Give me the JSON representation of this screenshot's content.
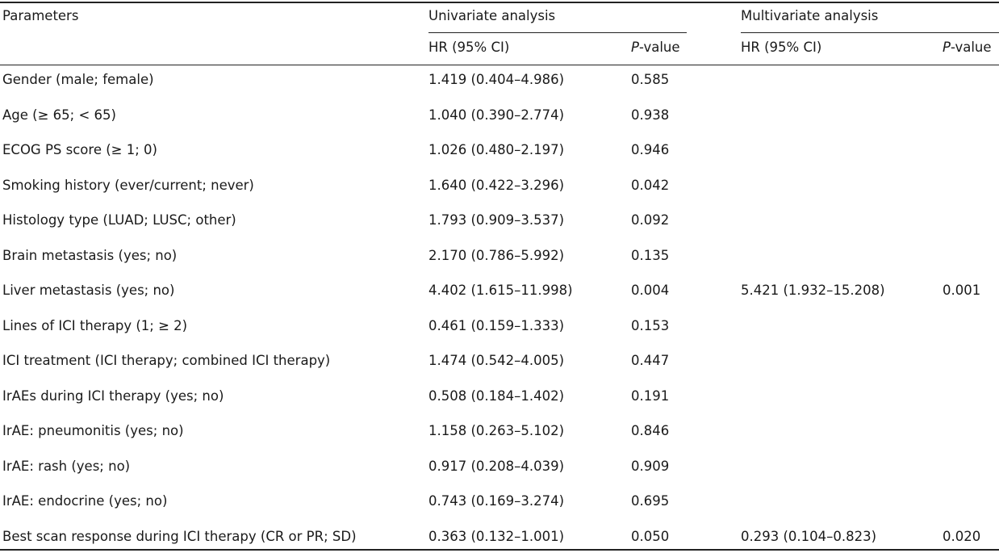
{
  "table": {
    "header": {
      "parameters": "Parameters",
      "univariate": "Univariate analysis",
      "multivariate": "Multivariate analysis",
      "hr_label": "HR (95% CI)",
      "p_italic": "P",
      "p_suffix": "-value"
    },
    "rows": [
      {
        "parameter": "Gender (male; female)",
        "uni_hr": "1.419 (0.404–4.986)",
        "uni_p": "0.585",
        "multi_hr": "",
        "multi_p": ""
      },
      {
        "parameter": "Age (≥ 65; < 65)",
        "uni_hr": "1.040 (0.390–2.774)",
        "uni_p": "0.938",
        "multi_hr": "",
        "multi_p": ""
      },
      {
        "parameter": "ECOG PS score (≥ 1; 0)",
        "uni_hr": "1.026 (0.480–2.197)",
        "uni_p": "0.946",
        "multi_hr": "",
        "multi_p": ""
      },
      {
        "parameter": "Smoking history (ever/current; never)",
        "uni_hr": "1.640 (0.422–3.296)",
        "uni_p": "0.042",
        "multi_hr": "",
        "multi_p": ""
      },
      {
        "parameter": "Histology type (LUAD; LUSC; other)",
        "uni_hr": "1.793 (0.909–3.537)",
        "uni_p": "0.092",
        "multi_hr": "",
        "multi_p": ""
      },
      {
        "parameter": "Brain metastasis (yes; no)",
        "uni_hr": "2.170 (0.786–5.992)",
        "uni_p": "0.135",
        "multi_hr": "",
        "multi_p": ""
      },
      {
        "parameter": "Liver metastasis (yes; no)",
        "uni_hr": "4.402 (1.615–11.998)",
        "uni_p": "0.004",
        "multi_hr": "5.421 (1.932–15.208)",
        "multi_p": "0.001"
      },
      {
        "parameter": "Lines of ICI therapy (1; ≥ 2)",
        "uni_hr": "0.461 (0.159–1.333)",
        "uni_p": "0.153",
        "multi_hr": "",
        "multi_p": ""
      },
      {
        "parameter": "ICI treatment (ICI therapy; combined ICI therapy)",
        "uni_hr": "1.474 (0.542–4.005)",
        "uni_p": "0.447",
        "multi_hr": "",
        "multi_p": ""
      },
      {
        "parameter": "IrAEs during ICI therapy (yes; no)",
        "uni_hr": "0.508 (0.184–1.402)",
        "uni_p": "0.191",
        "multi_hr": "",
        "multi_p": ""
      },
      {
        "parameter": "IrAE: pneumonitis (yes; no)",
        "uni_hr": "1.158 (0.263–5.102)",
        "uni_p": "0.846",
        "multi_hr": "",
        "multi_p": ""
      },
      {
        "parameter": "IrAE: rash (yes; no)",
        "uni_hr": "0.917 (0.208–4.039)",
        "uni_p": "0.909",
        "multi_hr": "",
        "multi_p": ""
      },
      {
        "parameter": "IrAE: endocrine (yes; no)",
        "uni_hr": "0.743 (0.169–3.274)",
        "uni_p": "0.695",
        "multi_hr": "",
        "multi_p": ""
      },
      {
        "parameter": "Best scan response during ICI therapy (CR or PR; SD)",
        "uni_hr": "0.363 (0.132–1.001)",
        "uni_p": "0.050",
        "multi_hr": "0.293 (0.104–0.823)",
        "multi_p": "0.020"
      }
    ]
  }
}
